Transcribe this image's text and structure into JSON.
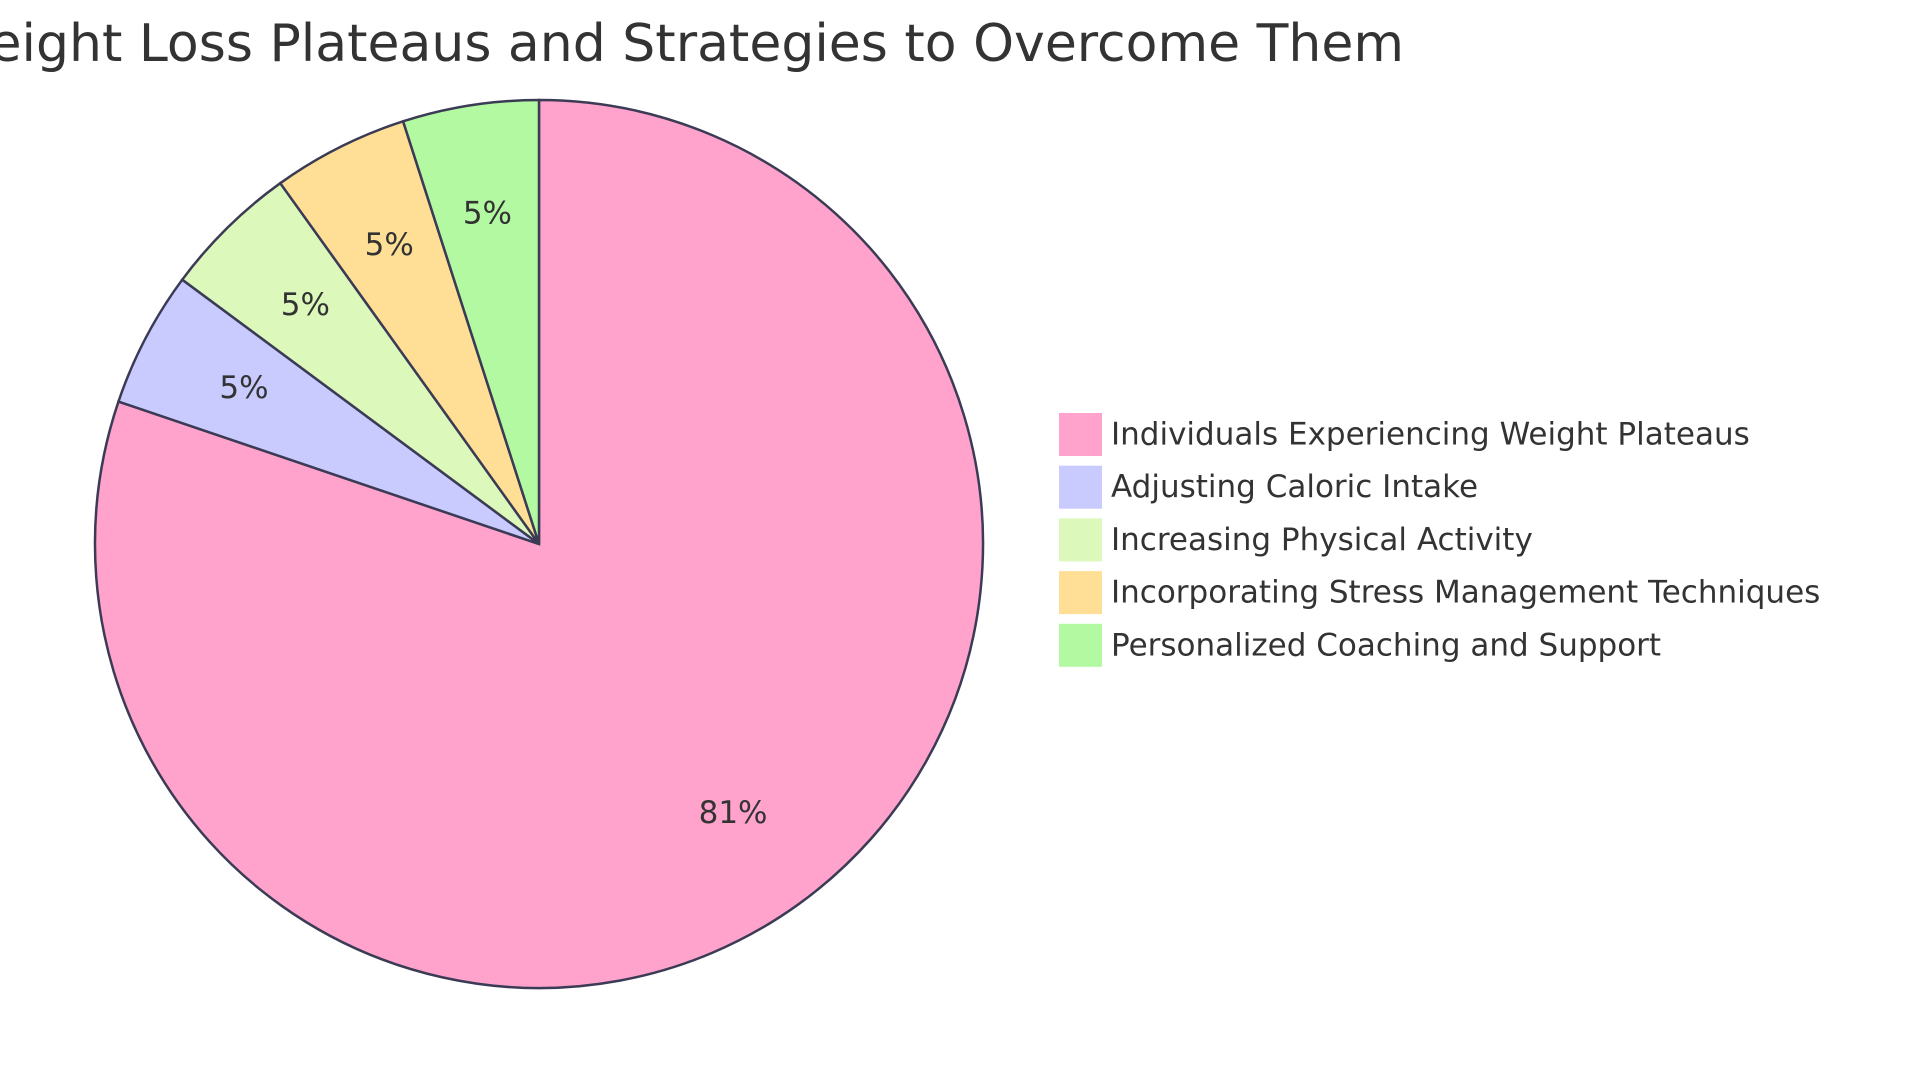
{
  "chart_data": {
    "type": "pie",
    "title": "Understanding Weight Loss Plateaus and Strategies to Overcome Them",
    "categories": [
      "Individuals Experiencing Weight Plateaus",
      "Adjusting Caloric Intake",
      "Increasing Physical Activity",
      "Incorporating Stress Management Techniques",
      "Personalized Coaching and Support"
    ],
    "values": [
      81,
      5,
      5,
      5,
      5
    ],
    "value_labels": [
      "81%",
      "5%",
      "5%",
      "5%",
      "5%"
    ],
    "colors": [
      "#ffa3cd",
      "#c9cbff",
      "#dcf9bb",
      "#ffdf95",
      "#b3f9a2"
    ],
    "legend": "right"
  }
}
